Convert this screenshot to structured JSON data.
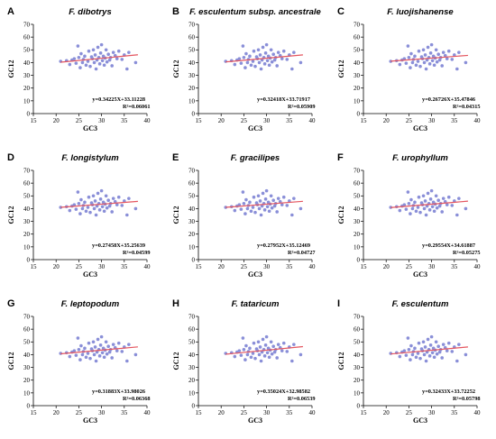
{
  "colors": {
    "point": "#8a8fd8",
    "fit_line": "#e4555f"
  },
  "chart_data": [
    {
      "type": "scatter",
      "letter": "A",
      "title": "F. dibotrys",
      "xlabel": "GC3",
      "ylabel": "GC12",
      "xlim": [
        15,
        40
      ],
      "ylim": [
        0,
        70
      ],
      "xticks": [
        "15",
        "20",
        "25",
        "30",
        "35",
        "40"
      ],
      "yticks": [
        "0",
        "10",
        "20",
        "30",
        "40",
        "50",
        "60",
        "70"
      ],
      "grid": false,
      "equation": "y=0.34225X+33.11228",
      "r2": "R²=0.06061",
      "fit": {
        "slope": 0.34225,
        "intercept": 33.11228,
        "x_range": [
          21,
          38
        ]
      }
    },
    {
      "type": "scatter",
      "letter": "B",
      "title": "F. esculentum subsp. ancestrale",
      "xlabel": "GC3",
      "ylabel": "GC12",
      "xlim": [
        15,
        40
      ],
      "ylim": [
        0,
        70
      ],
      "xticks": [
        "15",
        "20",
        "25",
        "30",
        "35",
        "40"
      ],
      "yticks": [
        "0",
        "10",
        "20",
        "30",
        "40",
        "50",
        "60",
        "70"
      ],
      "grid": false,
      "equation": "y=0.32418X+33.71917",
      "r2": "R²=0.05909",
      "fit": {
        "slope": 0.32418,
        "intercept": 33.71917,
        "x_range": [
          21,
          38
        ]
      }
    },
    {
      "type": "scatter",
      "letter": "C",
      "title": "F. luojishanense",
      "xlabel": "GC3",
      "ylabel": "GC12",
      "xlim": [
        15,
        40
      ],
      "ylim": [
        0,
        70
      ],
      "xticks": [
        "15",
        "20",
        "25",
        "30",
        "35",
        "40"
      ],
      "yticks": [
        "0",
        "10",
        "20",
        "30",
        "40",
        "50",
        "60",
        "70"
      ],
      "grid": false,
      "equation": "y=0.26726X+35.47846",
      "r2": "R²=0.04315",
      "fit": {
        "slope": 0.26726,
        "intercept": 35.47846,
        "x_range": [
          21,
          38
        ]
      }
    },
    {
      "type": "scatter",
      "letter": "D",
      "title": "F. longistylum",
      "xlabel": "GC3",
      "ylabel": "GC12",
      "xlim": [
        15,
        40
      ],
      "ylim": [
        0,
        70
      ],
      "xticks": [
        "15",
        "20",
        "25",
        "30",
        "35",
        "40"
      ],
      "yticks": [
        "0",
        "10",
        "20",
        "30",
        "40",
        "50",
        "60",
        "70"
      ],
      "grid": false,
      "equation": "y=0.27458X+35.25639",
      "r2": "R²=0.04599",
      "fit": {
        "slope": 0.27458,
        "intercept": 35.25639,
        "x_range": [
          21,
          38
        ]
      }
    },
    {
      "type": "scatter",
      "letter": "E",
      "title": "F. gracilipes",
      "xlabel": "GC3",
      "ylabel": "GC12",
      "xlim": [
        15,
        40
      ],
      "ylim": [
        0,
        70
      ],
      "xticks": [
        "15",
        "20",
        "25",
        "30",
        "35",
        "40"
      ],
      "yticks": [
        "0",
        "10",
        "20",
        "30",
        "40",
        "50",
        "60",
        "70"
      ],
      "grid": false,
      "equation": "y=0.27952X+35.12469",
      "r2": "R²=0.04727",
      "fit": {
        "slope": 0.27952,
        "intercept": 35.12469,
        "x_range": [
          21,
          38
        ]
      }
    },
    {
      "type": "scatter",
      "letter": "F",
      "title": "F. urophyllum",
      "xlabel": "GC3",
      "ylabel": "GC12",
      "xlim": [
        15,
        40
      ],
      "ylim": [
        0,
        70
      ],
      "xticks": [
        "15",
        "20",
        "25",
        "30",
        "35",
        "40"
      ],
      "yticks": [
        "0",
        "10",
        "20",
        "30",
        "40",
        "50",
        "60",
        "70"
      ],
      "grid": false,
      "equation": "y=0.29554X+34.61887",
      "r2": "R²=0.05275",
      "fit": {
        "slope": 0.29554,
        "intercept": 34.61887,
        "x_range": [
          21,
          38
        ]
      }
    },
    {
      "type": "scatter",
      "letter": "G",
      "title": "F. leptopodum",
      "xlabel": "GC3",
      "ylabel": "GC12",
      "xlim": [
        15,
        40
      ],
      "ylim": [
        0,
        70
      ],
      "xticks": [
        "15",
        "20",
        "25",
        "30",
        "35",
        "40"
      ],
      "yticks": [
        "0",
        "10",
        "20",
        "30",
        "40",
        "50",
        "60",
        "70"
      ],
      "grid": false,
      "equation": "y=0.31883X+33.98026",
      "r2": "R²=0.06368",
      "fit": {
        "slope": 0.31883,
        "intercept": 33.98026,
        "x_range": [
          21,
          38
        ]
      }
    },
    {
      "type": "scatter",
      "letter": "H",
      "title": "F. tataricum",
      "xlabel": "GC3",
      "ylabel": "GC12",
      "xlim": [
        15,
        40
      ],
      "ylim": [
        0,
        70
      ],
      "xticks": [
        "15",
        "20",
        "25",
        "30",
        "35",
        "40"
      ],
      "yticks": [
        "0",
        "10",
        "20",
        "30",
        "40",
        "50",
        "60",
        "70"
      ],
      "grid": false,
      "equation": "y=0.35024X+32.98582",
      "r2": "R²=0.06539",
      "fit": {
        "slope": 0.35024,
        "intercept": 32.98582,
        "x_range": [
          21,
          38
        ]
      }
    },
    {
      "type": "scatter",
      "letter": "I",
      "title": "F. esculentum",
      "xlabel": "GC3",
      "ylabel": "GC12",
      "xlim": [
        15,
        40
      ],
      "ylim": [
        0,
        70
      ],
      "xticks": [
        "15",
        "20",
        "25",
        "30",
        "35",
        "40"
      ],
      "yticks": [
        "0",
        "10",
        "20",
        "30",
        "40",
        "50",
        "60",
        "70"
      ],
      "grid": false,
      "equation": "y=0.32433X+33.72252",
      "r2": "R²=0.05798",
      "fit": {
        "slope": 0.32433,
        "intercept": 33.72252,
        "x_range": [
          21,
          38
        ]
      }
    }
  ],
  "points": {
    "x": [
      21.0,
      22.3,
      23.0,
      23.5,
      24.0,
      24.4,
      24.8,
      25.0,
      25.3,
      25.5,
      25.8,
      26.0,
      26.3,
      26.6,
      27.0,
      27.2,
      27.5,
      27.8,
      28.0,
      28.2,
      28.4,
      28.6,
      28.8,
      29.0,
      29.2,
      29.4,
      29.6,
      29.8,
      30.0,
      30.2,
      30.4,
      30.6,
      30.8,
      31.0,
      31.2,
      31.5,
      31.8,
      32.0,
      32.3,
      32.6,
      33.0,
      33.4,
      33.8,
      34.5,
      35.0,
      35.6,
      36.0,
      37.5
    ],
    "y": [
      41.0,
      41.5,
      38.5,
      42.0,
      43.0,
      39.5,
      53.0,
      44.0,
      36.0,
      47.0,
      40.0,
      42.5,
      45.0,
      38.0,
      41.0,
      49.0,
      37.0,
      44.5,
      43.0,
      50.0,
      40.0,
      46.0,
      35.0,
      42.0,
      52.0,
      44.0,
      39.0,
      47.5,
      54.0,
      41.5,
      45.0,
      38.0,
      43.5,
      50.0,
      40.5,
      46.5,
      42.0,
      44.0,
      37.5,
      48.0,
      45.5,
      43.0,
      49.0,
      42.5,
      46.0,
      35.0,
      48.0,
      40.0
    ]
  }
}
